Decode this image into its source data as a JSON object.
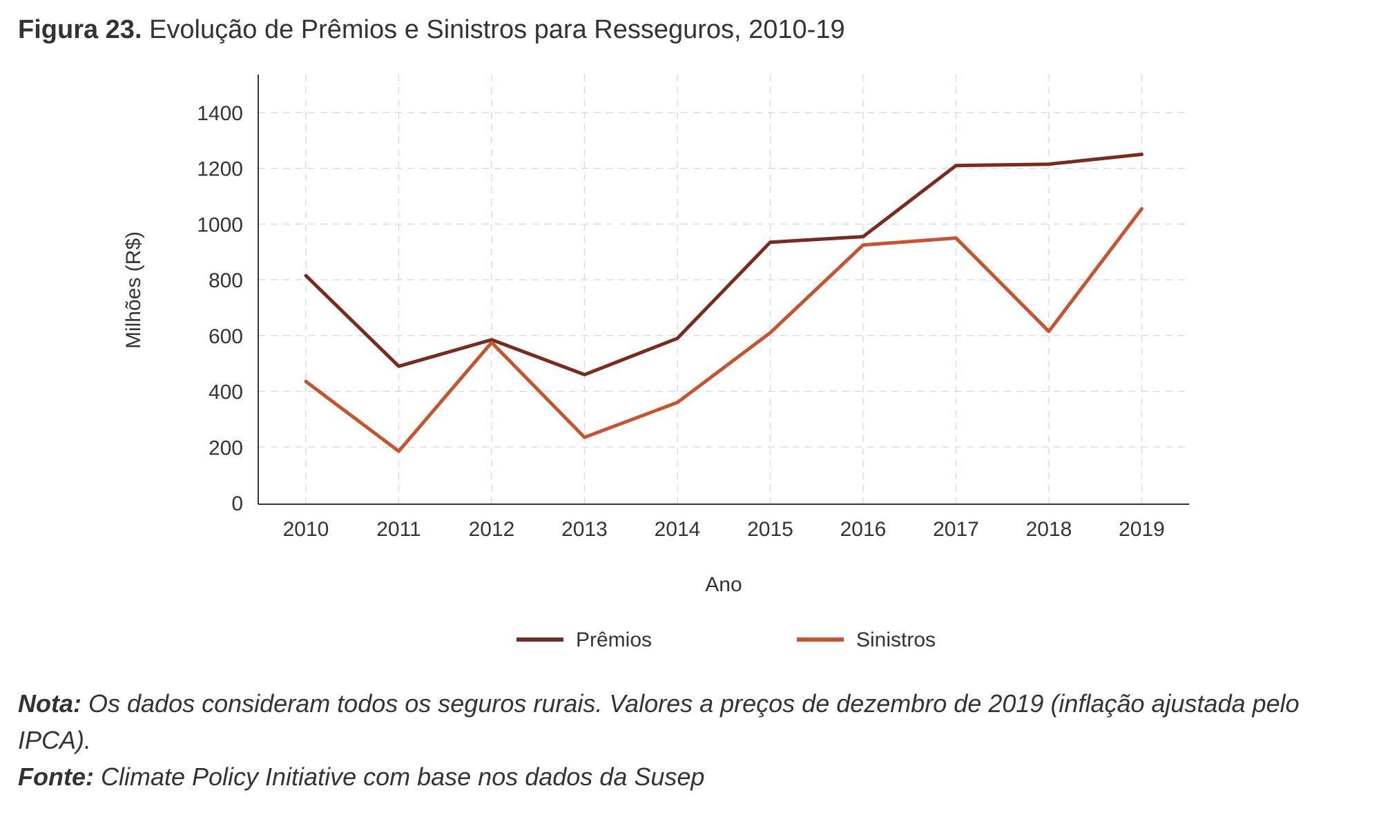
{
  "figure": {
    "label": "Figura 23.",
    "title": "Evolução de Prêmios e Sinistros para Resseguros, 2010-19"
  },
  "chart_data": {
    "type": "line",
    "x": [
      "2010",
      "2011",
      "2012",
      "2013",
      "2014",
      "2015",
      "2016",
      "2017",
      "2018",
      "2019"
    ],
    "series": [
      {
        "name": "Prêmios",
        "color": "#7b2a1e",
        "values": [
          815,
          490,
          585,
          460,
          590,
          935,
          955,
          1210,
          1215,
          1250
        ]
      },
      {
        "name": "Sinistros",
        "color": "#c9532e",
        "values": [
          435,
          185,
          575,
          235,
          360,
          610,
          925,
          950,
          615,
          1055
        ]
      }
    ],
    "yticks": [
      "0",
      "200",
      "400",
      "600",
      "800",
      "1000",
      "1200",
      "1400"
    ],
    "ylim": [
      0,
      1400
    ],
    "xlabel": "Ano",
    "ylabel": "Milhões (R$)",
    "grid": true,
    "legend_position": "bottom"
  },
  "notes": {
    "nota_label": "Nota:",
    "nota_text": " Os dados consideram todos os seguros rurais. Valores a preços de dezembro de 2019 (inflação ajustada pelo IPCA).",
    "fonte_label": "Fonte:",
    "fonte_text": " Climate Policy Initiative com base nos dados da Susep"
  }
}
